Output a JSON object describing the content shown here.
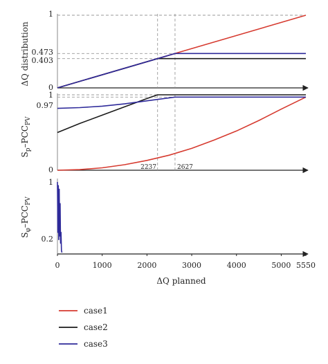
{
  "chart_data": [
    {
      "type": "line",
      "ylabel": "ΔQ distribution",
      "xlim": [
        0,
        5550
      ],
      "ylim": [
        0,
        1
      ],
      "y_ticks": [
        "0",
        "0.403",
        "0.473",
        "1"
      ],
      "annotation_x": [
        2237,
        2627
      ],
      "grid": false,
      "series": [
        {
          "name": "case1",
          "color": "#d63a2f",
          "x": [
            0,
            2237,
            2627,
            5550
          ],
          "y": [
            0,
            0.403,
            0.473,
            1
          ]
        },
        {
          "name": "case2",
          "color": "#1a1a1a",
          "x": [
            0,
            2237,
            2627,
            5550
          ],
          "y": [
            0,
            0.403,
            0.403,
            0.403
          ]
        },
        {
          "name": "case3",
          "color": "#2e2a9a",
          "x": [
            0,
            2237,
            2627,
            5550
          ],
          "y": [
            0,
            0.403,
            0.473,
            0.473
          ]
        }
      ]
    },
    {
      "type": "line",
      "ylabel_main": "S",
      "ylabel_sub": "p",
      "ylabel_mid": "–PCC",
      "ylabel_sub2": "PV",
      "xlim": [
        0,
        5550
      ],
      "ylim": [
        0,
        1
      ],
      "y_ticks": [
        "0",
        "0.97",
        "1"
      ],
      "annotations": [
        "2237",
        "2627"
      ],
      "grid": false,
      "series": [
        {
          "name": "case1",
          "color": "#d63a2f",
          "x": [
            0,
            500,
            1000,
            1500,
            2000,
            2500,
            3000,
            3500,
            4000,
            4500,
            5000,
            5550
          ],
          "y": [
            0,
            0.008,
            0.032,
            0.073,
            0.13,
            0.2,
            0.29,
            0.4,
            0.52,
            0.66,
            0.81,
            0.97
          ]
        },
        {
          "name": "case2",
          "color": "#1a1a1a",
          "x": [
            0,
            500,
            1000,
            1500,
            2000,
            2237,
            5550
          ],
          "y": [
            0.5,
            0.62,
            0.73,
            0.84,
            0.95,
            1.0,
            1.0
          ]
        },
        {
          "name": "case3",
          "color": "#2e2a9a",
          "x": [
            0,
            500,
            1000,
            1500,
            2000,
            2627,
            5550
          ],
          "y": [
            0.82,
            0.83,
            0.85,
            0.88,
            0.92,
            0.97,
            0.97
          ]
        }
      ]
    },
    {
      "type": "line",
      "ylabel_main": "S",
      "ylabel_sub": "φ",
      "ylabel_mid": "–PCC",
      "ylabel_sub2": "PV",
      "xlabel": "ΔQ planned",
      "xlim": [
        0,
        5550
      ],
      "ylim": [
        0,
        1
      ],
      "x_ticks": [
        "0",
        "1000",
        "2000",
        "3000",
        "4000",
        "5000",
        "5550"
      ],
      "y_ticks": [
        "0.2",
        "1"
      ],
      "grid": false,
      "series": [
        {
          "name": "case3",
          "color": "#2e2a9a",
          "x": [
            0,
            10,
            20,
            30,
            40,
            50,
            60,
            70,
            80,
            90,
            100
          ],
          "y": [
            1.0,
            0.3,
            0.95,
            0.2,
            0.9,
            0.25,
            0.7,
            0.15,
            0.3,
            0.05,
            0.02
          ]
        }
      ]
    }
  ],
  "legend": [
    {
      "label": "case1",
      "color": "#d63a2f"
    },
    {
      "label": "case2",
      "color": "#1a1a1a"
    },
    {
      "label": "case3",
      "color": "#2e2a9a"
    }
  ]
}
